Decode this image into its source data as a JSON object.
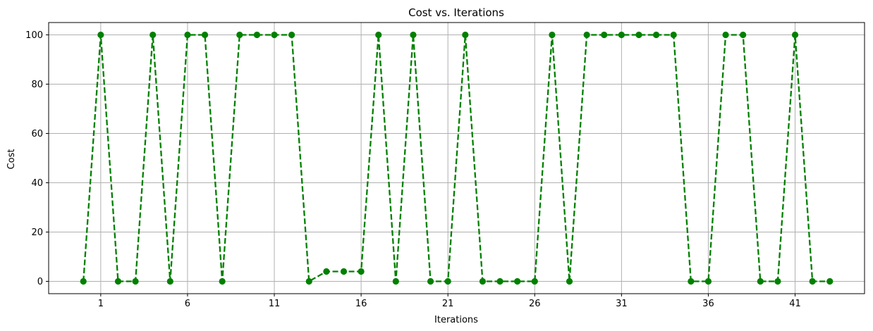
{
  "chart_data": {
    "type": "line",
    "title": "Cost vs. Iterations",
    "xlabel": "Iterations",
    "ylabel": "Cost",
    "xlim": [
      -2,
      45
    ],
    "ylim": [
      -5,
      105
    ],
    "x_ticks": [
      1,
      6,
      11,
      16,
      21,
      26,
      31,
      36,
      41
    ],
    "y_ticks": [
      0,
      20,
      40,
      60,
      80,
      100
    ],
    "grid": true,
    "series": [
      {
        "color": "#008000",
        "line_style": "dashed",
        "marker": "circle",
        "x": [
          0,
          1,
          2,
          3,
          4,
          5,
          6,
          7,
          8,
          9,
          10,
          11,
          12,
          13,
          14,
          15,
          16,
          17,
          18,
          19,
          20,
          21,
          22,
          23,
          24,
          25,
          26,
          27,
          28,
          29,
          30,
          31,
          32,
          33,
          34,
          35,
          36,
          37,
          38,
          39,
          40,
          41,
          42,
          43
        ],
        "values": [
          0,
          100,
          0,
          0,
          100,
          0,
          100,
          100,
          0,
          100,
          100,
          100,
          100,
          0,
          4,
          4,
          4,
          100,
          0,
          100,
          0,
          0,
          100,
          0,
          0,
          0,
          0,
          100,
          0,
          100,
          100,
          100,
          100,
          100,
          100,
          0,
          0,
          100,
          100,
          0,
          0,
          100,
          0,
          0
        ]
      }
    ]
  }
}
